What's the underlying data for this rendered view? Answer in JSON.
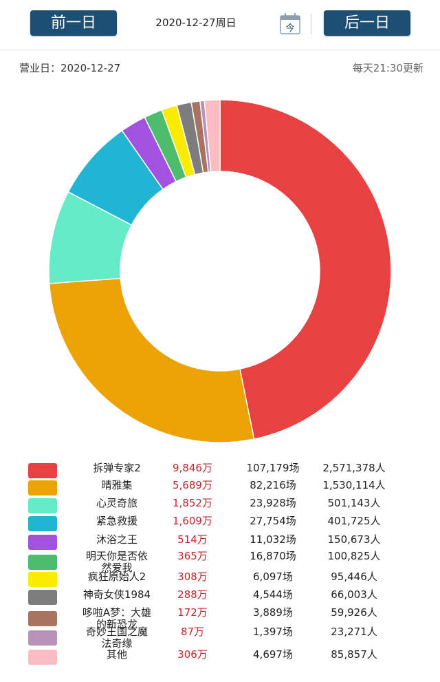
{
  "header": {
    "prev_label": "前一日",
    "next_label": "后一日",
    "date_title": "2020-12-27周日",
    "calendar_glyph": "今",
    "calendar_icon": "calendar-icon"
  },
  "info": {
    "business_day": "营业日：2020-12-27",
    "update_note": "每天21:30更新"
  },
  "chart_data": {
    "type": "pie",
    "donut": true,
    "unit": "万",
    "categories": [
      "拆弹专家2",
      "晴雅集",
      "心灵奇旅",
      "紧急救援",
      "沐浴之王",
      "明天你是否依然爱我",
      "疯狂原始人2",
      "神奇女侠1984",
      "哆啦A梦：大雄的新恐龙",
      "奇妙王国之魔法奇缘",
      "其他"
    ],
    "values": [
      9846,
      5689,
      1852,
      1609,
      514,
      365,
      308,
      288,
      172,
      87,
      306
    ],
    "colors": [
      "#e84142",
      "#eba304",
      "#66ebc9",
      "#22b4d3",
      "#a153e0",
      "#4cbd6c",
      "#fbeb00",
      "#7d7d7d",
      "#a87461",
      "#b892b8",
      "#fbbdc1"
    ]
  },
  "rows": [
    {
      "name_lines": [
        "拆弹专家2"
      ],
      "box": "9,846万",
      "screens": "107,179场",
      "people": "2,571,378人"
    },
    {
      "name_lines": [
        "晴雅集"
      ],
      "box": "5,689万",
      "screens": "82,216场",
      "people": "1,530,114人"
    },
    {
      "name_lines": [
        "心灵奇旅"
      ],
      "box": "1,852万",
      "screens": "23,928场",
      "people": "501,143人"
    },
    {
      "name_lines": [
        "紧急救援"
      ],
      "box": "1,609万",
      "screens": "27,754场",
      "people": "401,725人"
    },
    {
      "name_lines": [
        "沐浴之王"
      ],
      "box": "514万",
      "screens": "11,032场",
      "people": "150,673人"
    },
    {
      "name_lines": [
        "明天你是否依",
        "然爱我"
      ],
      "box": "365万",
      "screens": "16,870场",
      "people": "100,825人"
    },
    {
      "name_lines": [
        "疯狂原始人2"
      ],
      "box": "308万",
      "screens": "6,097场",
      "people": "95,446人"
    },
    {
      "name_lines": [
        "神奇女侠1984"
      ],
      "box": "288万",
      "screens": "4,544场",
      "people": "66,003人"
    },
    {
      "name_lines": [
        "哆啦A梦：大雄",
        "的新恐龙"
      ],
      "box": "172万",
      "screens": "3,889场",
      "people": "59,926人"
    },
    {
      "name_lines": [
        "奇妙王国之魔",
        "法奇缘"
      ],
      "box": "87万",
      "screens": "1,397场",
      "people": "23,271人"
    },
    {
      "name_lines": [
        "其他"
      ],
      "box": "306万",
      "screens": "4,697场",
      "people": "85,857人"
    }
  ]
}
